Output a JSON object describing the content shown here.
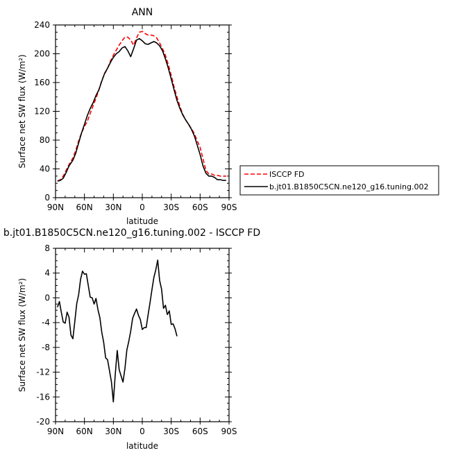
{
  "chart_data": [
    {
      "type": "line",
      "title": "ANN",
      "xlabel": "latitude",
      "ylabel": "Surface net SW flux (W/m²)",
      "xlim": [
        90,
        -90
      ],
      "ylim": [
        0,
        240
      ],
      "xticks": [
        90,
        60,
        30,
        0,
        -30,
        -60,
        -90
      ],
      "xtick_labels": [
        "90N",
        "60N",
        "30N",
        "0",
        "30S",
        "60S",
        "90S"
      ],
      "yticks": [
        0,
        40,
        80,
        120,
        160,
        200,
        240
      ],
      "ytick_labels": [
        "0",
        "40",
        "80",
        "120",
        "160",
        "200",
        "240"
      ],
      "legend_position": "right, outside plot",
      "series": [
        {
          "name": "ISCCP FD",
          "color": "#ff0000",
          "dash": "dashed",
          "points": [
            [
              88,
              23
            ],
            [
              85,
              25
            ],
            [
              82,
              30
            ],
            [
              79,
              38
            ],
            [
              76,
              46
            ],
            [
              72,
              55
            ],
            [
              69,
              66
            ],
            [
              66,
              79
            ],
            [
              63,
              90
            ],
            [
              60,
              99
            ],
            [
              57,
              106
            ],
            [
              54,
              117
            ],
            [
              51,
              128
            ],
            [
              48,
              138
            ],
            [
              45,
              150
            ],
            [
              42,
              163
            ],
            [
              39,
              172
            ],
            [
              36,
              180
            ],
            [
              33,
              190
            ],
            [
              30,
              198
            ],
            [
              27,
              205
            ],
            [
              24,
              212
            ],
            [
              21,
              218
            ],
            [
              18,
              223
            ],
            [
              15,
              223
            ],
            [
              12,
              219
            ],
            [
              9,
              212
            ],
            [
              6,
              222
            ],
            [
              3,
              230
            ],
            [
              0,
              231
            ],
            [
              -3,
              228
            ],
            [
              -6,
              226
            ],
            [
              -9,
              226
            ],
            [
              -12,
              225
            ],
            [
              -15,
              222
            ],
            [
              -18,
              215
            ],
            [
              -21,
              207
            ],
            [
              -24,
              198
            ],
            [
              -27,
              185
            ],
            [
              -30,
              170
            ],
            [
              -33,
              154
            ],
            [
              -36,
              140
            ],
            [
              -39,
              127
            ],
            [
              -42,
              116
            ],
            [
              -45,
              108
            ],
            [
              -48,
              102
            ],
            [
              -51,
              96
            ],
            [
              -54,
              89
            ],
            [
              -57,
              79
            ],
            [
              -60,
              70
            ],
            [
              -63,
              54
            ],
            [
              -66,
              38
            ],
            [
              -69,
              33
            ],
            [
              -72,
              33
            ],
            [
              -75,
              31
            ],
            [
              -78,
              31
            ],
            [
              -81,
              30
            ],
            [
              -84,
              30
            ],
            [
              -87,
              30
            ]
          ]
        },
        {
          "name": "b.jt01.B1850C5CN.ne120_g16.tuning.002",
          "color": "#000000",
          "dash": "solid",
          "points": [
            [
              88,
              23
            ],
            [
              85,
              24
            ],
            [
              82,
              27
            ],
            [
              79,
              35
            ],
            [
              76,
              44
            ],
            [
              72,
              52
            ],
            [
              69,
              62
            ],
            [
              66,
              76
            ],
            [
              63,
              90
            ],
            [
              60,
              102
            ],
            [
              57,
              114
            ],
            [
              54,
              124
            ],
            [
              51,
              132
            ],
            [
              48,
              142
            ],
            [
              45,
              150
            ],
            [
              42,
              162
            ],
            [
              39,
              173
            ],
            [
              36,
              180
            ],
            [
              33,
              188
            ],
            [
              30,
              195
            ],
            [
              27,
              200
            ],
            [
              24,
              203
            ],
            [
              21,
              208
            ],
            [
              18,
              210
            ],
            [
              15,
              204
            ],
            [
              12,
              196
            ],
            [
              9,
              207
            ],
            [
              6,
              219
            ],
            [
              3,
              221
            ],
            [
              0,
              218
            ],
            [
              -3,
              214
            ],
            [
              -6,
              213
            ],
            [
              -9,
              215
            ],
            [
              -12,
              217
            ],
            [
              -15,
              215
            ],
            [
              -18,
              211
            ],
            [
              -21,
              204
            ],
            [
              -24,
              193
            ],
            [
              -27,
              180
            ],
            [
              -30,
              165
            ],
            [
              -33,
              150
            ],
            [
              -36,
              135
            ],
            [
              -39,
              124
            ],
            [
              -42,
              115
            ],
            [
              -45,
              108
            ],
            [
              -48,
              102
            ],
            [
              -51,
              95
            ],
            [
              -54,
              86
            ],
            [
              -57,
              73
            ],
            [
              -60,
              60
            ],
            [
              -63,
              44
            ],
            [
              -66,
              34
            ],
            [
              -69,
              30
            ],
            [
              -72,
              30
            ],
            [
              -75,
              28
            ],
            [
              -78,
              25
            ],
            [
              -81,
              25
            ],
            [
              -84,
              24
            ],
            [
              -87,
              24
            ]
          ]
        }
      ]
    },
    {
      "type": "line",
      "title": "b.jt01.B1850C5CN.ne120_g16.tuning.002 - ISCCP FD",
      "xlabel": "latitude",
      "ylabel": "Surface net SW flux (W/m²)",
      "xlim": [
        90,
        -90
      ],
      "ylim": [
        -20,
        8
      ],
      "xticks": [
        90,
        60,
        30,
        0,
        -30,
        -60,
        -90
      ],
      "xtick_labels": [
        "90N",
        "60N",
        "30N",
        "0",
        "30S",
        "60S",
        "90S"
      ],
      "yticks": [
        -20,
        -16,
        -12,
        -8,
        -4,
        0,
        4,
        8
      ],
      "ytick_labels": [
        "-20",
        "-16",
        "-12",
        "-8",
        "-4",
        "0",
        "4",
        "8"
      ],
      "series": [
        {
          "color": "#000000",
          "dash": "solid",
          "points": [
            [
              88,
              -1.5
            ],
            [
              86,
              -0.6
            ],
            [
              84,
              -2.3
            ],
            [
              82,
              -3.9
            ],
            [
              80,
              -4.1
            ],
            [
              78,
              -2.3
            ],
            [
              76,
              -3.1
            ],
            [
              74,
              -6.0
            ],
            [
              72,
              -6.6
            ],
            [
              70,
              -3.8
            ],
            [
              68,
              -0.9
            ],
            [
              66,
              0.5
            ],
            [
              64,
              3.0
            ],
            [
              62,
              4.3
            ],
            [
              60,
              3.8
            ],
            [
              58,
              3.9
            ],
            [
              56,
              2.0
            ],
            [
              54,
              0.1
            ],
            [
              52,
              0.0
            ],
            [
              50,
              -1.0
            ],
            [
              48,
              -0.1
            ],
            [
              46,
              -1.9
            ],
            [
              44,
              -3.2
            ],
            [
              42,
              -5.6
            ],
            [
              40,
              -7.2
            ],
            [
              38,
              -9.7
            ],
            [
              36,
              -10.0
            ],
            [
              34,
              -11.8
            ],
            [
              32,
              -13.6
            ],
            [
              30,
              -16.8
            ],
            [
              28,
              -12.3
            ],
            [
              26,
              -8.5
            ],
            [
              24,
              -11.6
            ],
            [
              22,
              -12.6
            ],
            [
              20,
              -13.6
            ],
            [
              18,
              -11.4
            ],
            [
              16,
              -8.4
            ],
            [
              14,
              -7.0
            ],
            [
              12,
              -5.4
            ],
            [
              10,
              -3.3
            ],
            [
              8,
              -2.5
            ],
            [
              6,
              -1.8
            ],
            [
              4,
              -2.8
            ],
            [
              2,
              -3.5
            ],
            [
              0,
              -5.1
            ],
            [
              -2,
              -4.8
            ],
            [
              -4,
              -4.8
            ],
            [
              -6,
              -2.8
            ],
            [
              -8,
              -0.8
            ],
            [
              -10,
              1.3
            ],
            [
              -12,
              3.3
            ],
            [
              -14,
              4.5
            ],
            [
              -16,
              6.1
            ],
            [
              -18,
              2.8
            ],
            [
              -20,
              1.4
            ],
            [
              -22,
              -1.7
            ],
            [
              -24,
              -1.2
            ],
            [
              -26,
              -2.7
            ],
            [
              -28,
              -2.1
            ],
            [
              -30,
              -4.3
            ],
            [
              -32,
              -4.2
            ],
            [
              -34,
              -5.0
            ],
            [
              -36,
              -6.2
            ]
          ]
        }
      ]
    }
  ]
}
